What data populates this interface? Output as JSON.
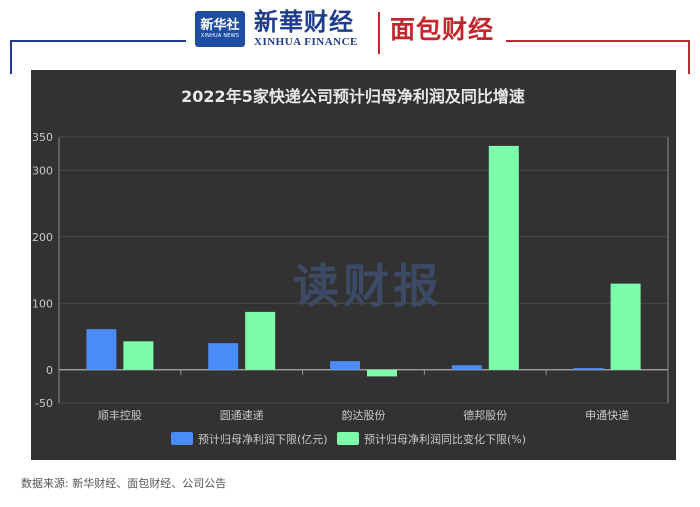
{
  "header": {
    "xinhua_badge_cn": "新华社",
    "xinhua_badge_en": "XINHUA NEWS",
    "brand_cn": "新華财经",
    "brand_en": "XINHUA FINANCE",
    "brand2": "面包财经",
    "brand2_mark": "®"
  },
  "watermark": "读财报",
  "source": "数据来源: 新华财经、面包财经、公司公告",
  "colors": {
    "panel_bg": "#323232",
    "series1": "#4a8cf5",
    "series2": "#7cfdaa",
    "axis_text": "#c8c8c8",
    "title": "#e8e8e8",
    "watermark": "#3c4a66"
  },
  "chart_data": {
    "type": "bar",
    "title": "2022年5家快递公司预计归母净利润及同比增速",
    "categories": [
      "顺丰控股",
      "圆通速递",
      "韵达股份",
      "德邦股份",
      "申通快递"
    ],
    "series": [
      {
        "name": "预计归母净利润下限(亿元)",
        "values": [
          61,
          40,
          13,
          6.8,
          2.5
        ]
      },
      {
        "name": "预计归母净利润同比变化下限(%)",
        "values": [
          42.7,
          87,
          -10,
          336.6,
          129.5
        ]
      }
    ],
    "y_ticks": [
      -50,
      0,
      100,
      200,
      300,
      350
    ],
    "ylim": [
      -50,
      350
    ],
    "legend_position": "bottom"
  }
}
